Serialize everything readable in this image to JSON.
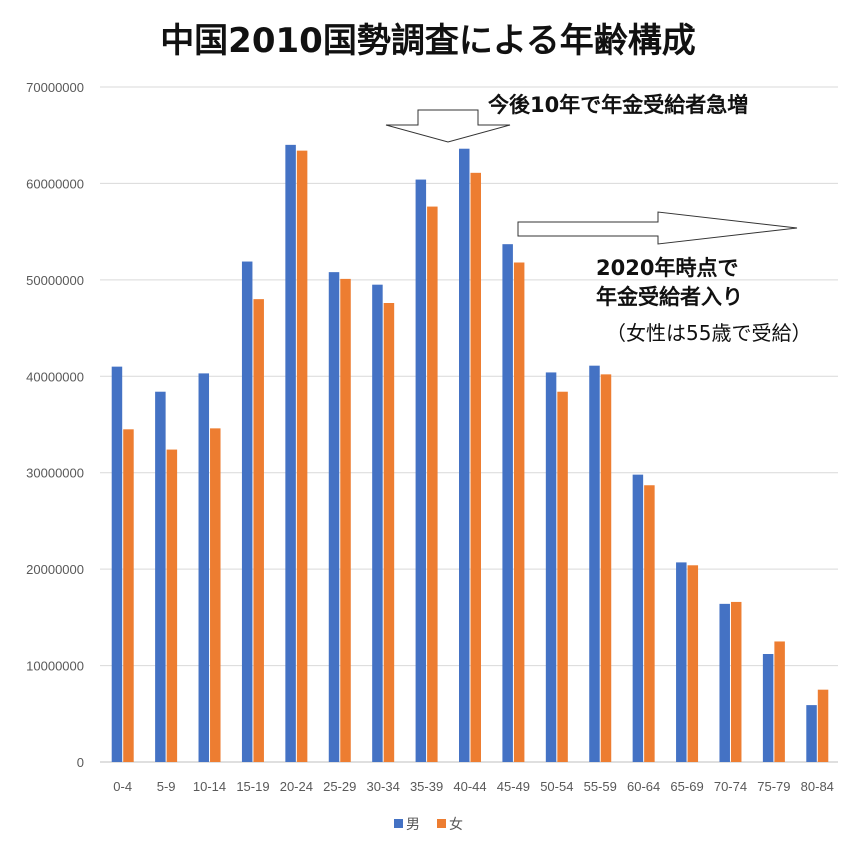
{
  "chart_data": {
    "type": "bar",
    "title": "中国2010国勢調査による年齢構成",
    "categories": [
      "0-4",
      "5-9",
      "10-14",
      "15-19",
      "20-24",
      "25-29",
      "30-34",
      "35-39",
      "40-44",
      "45-49",
      "50-54",
      "55-59",
      "60-64",
      "65-69",
      "70-74",
      "75-79",
      "80-84"
    ],
    "series": [
      {
        "name": "男",
        "color": "#4472C4",
        "values": [
          41000000,
          38400000,
          40300000,
          51900000,
          64000000,
          50800000,
          49500000,
          60400000,
          63600000,
          53700000,
          40400000,
          41100000,
          29800000,
          20700000,
          16400000,
          11200000,
          5900000
        ]
      },
      {
        "name": "女",
        "color": "#ED7D31",
        "values": [
          34500000,
          32400000,
          34600000,
          48000000,
          63400000,
          50100000,
          47600000,
          57600000,
          61100000,
          51800000,
          38400000,
          40200000,
          28700000,
          20400000,
          16600000,
          12500000,
          7500000
        ]
      }
    ],
    "ylim": [
      0,
      70000000
    ],
    "yticks": [
      "0",
      "10000000",
      "20000000",
      "30000000",
      "40000000",
      "50000000",
      "60000000",
      "70000000"
    ],
    "xlabel": "",
    "ylabel": "",
    "grid": true,
    "legend": "bottom",
    "annotations": {
      "top_arrow_label": "今後10年で年金受給者急増",
      "right_arrow_label_line1": "2020年時点で",
      "right_arrow_label_line2": "年金受給者入り",
      "right_arrow_note": "（女性は55歳で受給）"
    }
  }
}
